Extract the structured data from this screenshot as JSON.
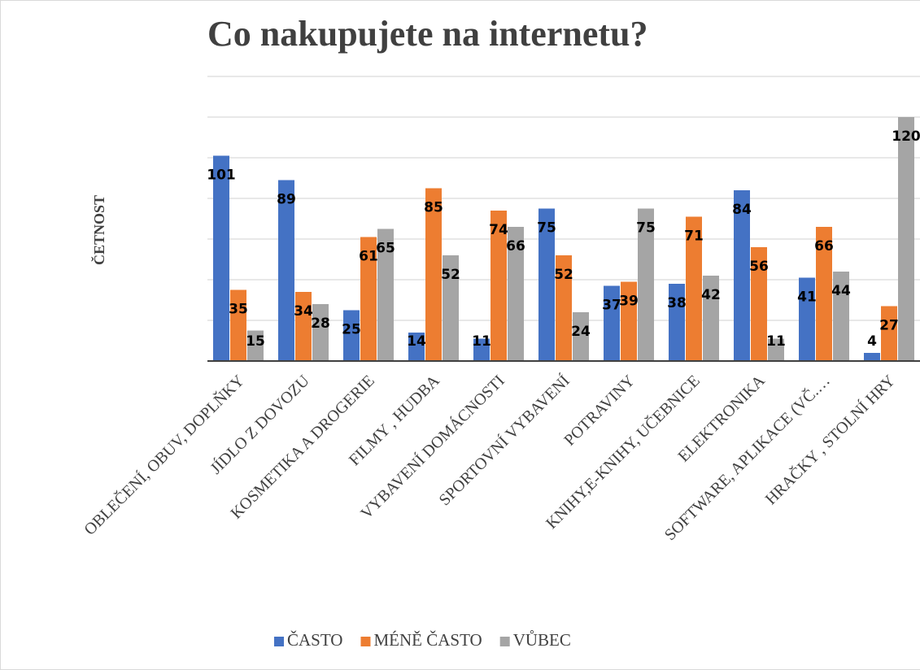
{
  "chart_data": {
    "type": "bar",
    "title": "Co nakupujete na internetu?",
    "y_label": "ČETNOST",
    "categories": [
      "OBLEČENÍ, OBUV, DOPLŇKY",
      "JÍDLO Z DOVOZU",
      "KOSMETIKA A DROGERIE",
      "FILMY , HUDBA",
      "VYBAVENÍ DOMÁCNOSTI",
      "SPORTOVNÍ VYBAVENÍ",
      "POTRAVINY",
      "KNIHY,E-KNIHY, UČEBNICE",
      "ELEKTRONIKA",
      "SOFTWARE, APLIKACE (VČ.…",
      "HRAČKY , STOLNÍ HRY"
    ],
    "series": [
      {
        "name": "ČASTO",
        "color": "#4472c4",
        "values": [
          101,
          89,
          25,
          14,
          11,
          75,
          37,
          38,
          84,
          41,
          4
        ]
      },
      {
        "name": "MÉNĚ ČASTO",
        "color": "#ed7d31",
        "values": [
          35,
          34,
          61,
          85,
          74,
          52,
          39,
          71,
          56,
          66,
          27
        ]
      },
      {
        "name": "VŮBEC",
        "color": "#a5a5a5",
        "values": [
          15,
          28,
          65,
          52,
          66,
          24,
          75,
          42,
          11,
          44,
          120
        ]
      }
    ],
    "ylim": [
      0,
      140
    ],
    "grid_lines": [
      0,
      20,
      40,
      60,
      80,
      100,
      120,
      140
    ],
    "grid": true,
    "legend": "bottom"
  }
}
